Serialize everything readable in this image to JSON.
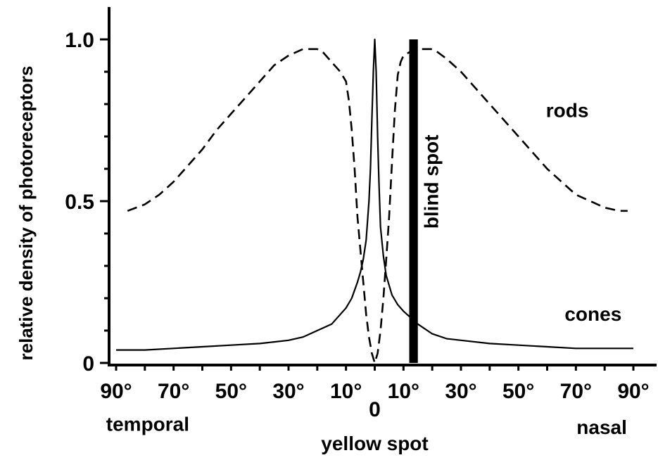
{
  "chart_data": {
    "type": "line",
    "ylabel": "relative density of photoreceptors",
    "ylim": [
      0,
      1.0
    ],
    "xlim": [
      -90,
      90
    ],
    "y_tick_labels": [
      {
        "value": 0,
        "label": "0"
      },
      {
        "value": 0.5,
        "label": "0.5"
      },
      {
        "value": 1.0,
        "label": "1.0"
      }
    ],
    "x_tick_labels": [
      {
        "value": -90,
        "label": "90°"
      },
      {
        "value": -70,
        "label": "70°"
      },
      {
        "value": -50,
        "label": "50°"
      },
      {
        "value": -30,
        "label": "30°"
      },
      {
        "value": -10,
        "label": "10°"
      },
      {
        "value": 0,
        "label": "0"
      },
      {
        "value": 10,
        "label": "10°"
      },
      {
        "value": 30,
        "label": "30°"
      },
      {
        "value": 50,
        "label": "50°"
      },
      {
        "value": 70,
        "label": "70°"
      },
      {
        "value": 90,
        "label": "90°"
      }
    ],
    "series": [
      {
        "name": "rods",
        "style": "dashed",
        "color": "#000000",
        "x": [
          -86,
          -80,
          -75,
          -70,
          -65,
          -60,
          -55,
          -50,
          -45,
          -40,
          -35,
          -30,
          -25,
          -22,
          -20,
          -18,
          -16,
          -14,
          -12,
          -10,
          -9,
          -8,
          -7,
          -6,
          -5,
          -4,
          -3,
          -2,
          -1,
          0,
          1,
          2,
          3,
          4,
          5,
          6,
          7,
          8,
          9,
          10,
          12,
          14,
          16,
          18,
          20,
          22,
          25,
          30,
          35,
          40,
          45,
          50,
          55,
          60,
          65,
          70,
          75,
          80,
          85,
          88
        ],
        "y": [
          0.47,
          0.49,
          0.52,
          0.56,
          0.61,
          0.66,
          0.72,
          0.77,
          0.82,
          0.87,
          0.92,
          0.95,
          0.97,
          0.97,
          0.97,
          0.96,
          0.94,
          0.92,
          0.9,
          0.87,
          0.81,
          0.72,
          0.6,
          0.45,
          0.35,
          0.25,
          0.15,
          0.08,
          0.03,
          0.0,
          0.03,
          0.1,
          0.2,
          0.32,
          0.45,
          0.62,
          0.78,
          0.89,
          0.93,
          0.95,
          0.96,
          0.965,
          0.97,
          0.97,
          0.97,
          0.96,
          0.94,
          0.9,
          0.85,
          0.8,
          0.75,
          0.7,
          0.65,
          0.6,
          0.56,
          0.52,
          0.5,
          0.48,
          0.47,
          0.47
        ]
      },
      {
        "name": "cones",
        "style": "solid",
        "color": "#000000",
        "x": [
          -90,
          -80,
          -70,
          -60,
          -50,
          -40,
          -35,
          -30,
          -25,
          -20,
          -15,
          -10,
          -8,
          -6,
          -5,
          -4,
          -3,
          -2,
          -1.5,
          -1,
          -0.5,
          0,
          0.5,
          1,
          1.5,
          2,
          3,
          4,
          5,
          6,
          8,
          10,
          15,
          20,
          25,
          30,
          40,
          50,
          60,
          70,
          80,
          90
        ],
        "y": [
          0.04,
          0.04,
          0.045,
          0.05,
          0.055,
          0.06,
          0.065,
          0.07,
          0.08,
          0.1,
          0.12,
          0.17,
          0.2,
          0.25,
          0.28,
          0.32,
          0.38,
          0.5,
          0.6,
          0.75,
          0.9,
          1.0,
          0.9,
          0.7,
          0.55,
          0.42,
          0.33,
          0.27,
          0.24,
          0.21,
          0.18,
          0.16,
          0.12,
          0.09,
          0.075,
          0.07,
          0.06,
          0.055,
          0.05,
          0.045,
          0.045,
          0.045
        ]
      }
    ],
    "blind_spot": {
      "from": 12,
      "to": 15
    },
    "annotations": [
      {
        "text": "rods",
        "x": 67,
        "y": 0.76
      },
      {
        "text": "cones",
        "x": 76,
        "y": 0.13
      },
      {
        "text": "blind spot",
        "x": 22,
        "y": 0.56
      },
      {
        "text": "temporal",
        "x": -79,
        "y": -0.21
      },
      {
        "text": "nasal",
        "x": 79,
        "y": -0.22
      },
      {
        "text": "yellow spot",
        "x": 0,
        "y": -0.27
      }
    ],
    "grid": false,
    "legend": "none"
  }
}
